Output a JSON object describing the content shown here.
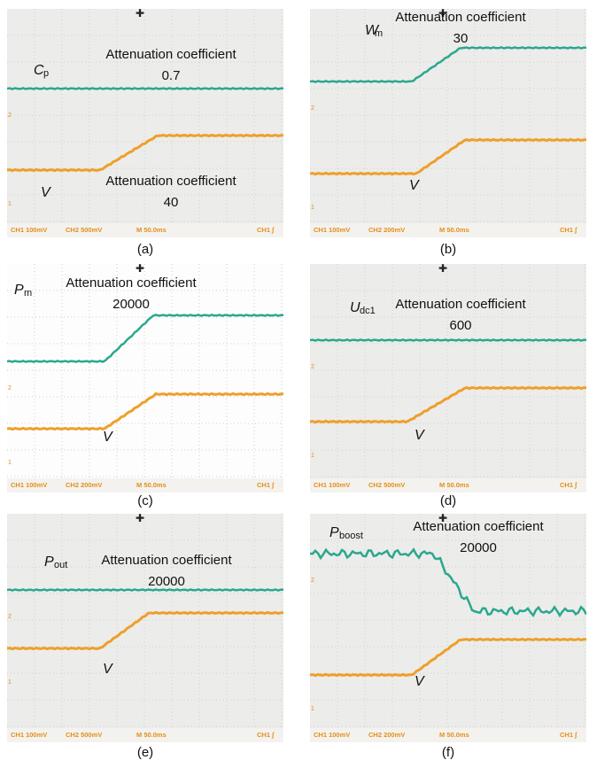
{
  "channel_markers": [
    "2",
    "1"
  ],
  "panels": [
    {
      "caption": "(a)",
      "symbol": "C",
      "sub": "p",
      "attenuation": "Attenuation coefficient",
      "factor": "0.7",
      "v_label": "V",
      "v_attenuation": "Attenuation coefficient",
      "v_factor": "40",
      "footer": [
        "CH1 100mV",
        "CH2 500mV",
        "M 50.0ms",
        "CH1 ∫"
      ]
    },
    {
      "caption": "(b)",
      "symbol": "W",
      "sub": "m",
      "attenuation": "Attenuation coefficient",
      "factor": "30",
      "v_label": "V",
      "footer": [
        "CH1 100mV",
        "CH2 200mV",
        "M 50.0ms",
        "CH1 ∫"
      ]
    },
    {
      "caption": "(c)",
      "symbol": "P",
      "sub": "m",
      "attenuation": "Attenuation coefficient",
      "factor": "20000",
      "v_label": "V",
      "footer": [
        "CH1 100mV",
        "CH2 200mV",
        "M 50.0ms",
        "CH1 ∫"
      ]
    },
    {
      "caption": "(d)",
      "symbol": "U",
      "sub": "dc1",
      "attenuation": "Attenuation coefficient",
      "factor": "600",
      "v_label": "V",
      "footer": [
        "CH1 100mV",
        "CH2 500mV",
        "M 50.0ms",
        "CH1 ∫"
      ]
    },
    {
      "caption": "(e)",
      "symbol": "P",
      "sub": "out",
      "attenuation": "Attenuation coefficient",
      "factor": "20000",
      "v_label": "V",
      "footer": [
        "CH1 100mV",
        "CH2 500mV",
        "M 50.0ms",
        "CH1 ∫"
      ]
    },
    {
      "caption": "(f)",
      "symbol": "P",
      "sub": "boost",
      "attenuation": "Attenuation coefficient",
      "factor": "20000",
      "v_label": "V",
      "footer": [
        "CH1 100mV",
        "CH2 200mV",
        "M 50.0ms",
        "CH1 ∫"
      ]
    }
  ]
}
